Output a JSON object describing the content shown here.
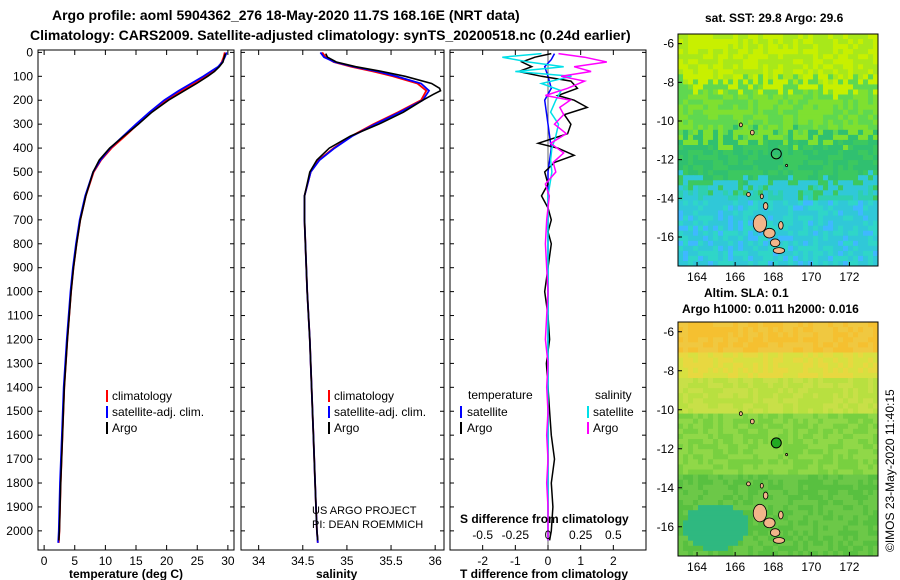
{
  "header": {
    "line1": "Argo profile: aoml 5904362_276 18-May-2020 11.7S 168.16E (NRT data)",
    "line2": "Climatology: CARS2009. Satellite-adjusted climatology: synTS_20200518.nc (0.24d earlier)"
  },
  "colors": {
    "climatology": "#ff0000",
    "satellite": "#0000ff",
    "argo": "#000000",
    "sat_salinity": "#00e0e8",
    "argo_salinity": "#ff00ff",
    "map_marker": "#22aa22"
  },
  "chart_data": [
    {
      "type": "line",
      "id": "temperature",
      "xlabel": "temperature (deg C)",
      "ylabel": "",
      "xlim": [
        -1,
        31
      ],
      "ylim": [
        2080,
        -10
      ],
      "xticks": [
        "0",
        "5",
        "10",
        "15",
        "20",
        "25",
        "30"
      ],
      "xtick_values": [
        0,
        5,
        10,
        15,
        20,
        25,
        30
      ],
      "yticks": [
        "0",
        "100",
        "200",
        "300",
        "400",
        "500",
        "600",
        "700",
        "800",
        "900",
        "1000",
        "1100",
        "1200",
        "1300",
        "1400",
        "1500",
        "1600",
        "1700",
        "1800",
        "1900",
        "2000"
      ],
      "ytick_values": [
        0,
        100,
        200,
        300,
        400,
        500,
        600,
        700,
        800,
        900,
        1000,
        1100,
        1200,
        1300,
        1400,
        1500,
        1600,
        1700,
        1800,
        1900,
        2000
      ],
      "legend": [
        "climatology",
        "satellite-adj. clim.",
        "Argo"
      ],
      "series": [
        {
          "name": "climatology",
          "depth": [
            0,
            20,
            40,
            60,
            80,
            100,
            130,
            160,
            200,
            250,
            300,
            350,
            400,
            450,
            500,
            600,
            700,
            800,
            900,
            1000,
            1200,
            1400,
            1600,
            1800,
            2000,
            2050
          ],
          "values": [
            29.5,
            29.3,
            29.0,
            28.5,
            27.6,
            26.4,
            24.5,
            22.5,
            20.0,
            17.5,
            15.3,
            13.2,
            11.0,
            9.3,
            8.1,
            6.8,
            5.9,
            5.3,
            4.8,
            4.4,
            3.8,
            3.3,
            3.0,
            2.7,
            2.5,
            2.4
          ]
        },
        {
          "name": "satellite-adj. clim.",
          "depth": [
            0,
            20,
            40,
            60,
            80,
            100,
            130,
            160,
            200,
            250,
            300,
            350,
            400,
            450,
            500,
            600,
            700,
            800,
            900,
            1000,
            1200,
            1400,
            1600,
            1800,
            2000,
            2050
          ],
          "values": [
            29.8,
            29.5,
            29.1,
            28.4,
            27.2,
            26.0,
            24.0,
            22.0,
            19.6,
            17.2,
            15.0,
            12.9,
            10.8,
            9.2,
            8.0,
            6.7,
            5.8,
            5.2,
            4.7,
            4.3,
            3.7,
            3.2,
            2.9,
            2.6,
            2.4,
            2.3
          ]
        },
        {
          "name": "Argo",
          "depth": [
            5,
            20,
            40,
            60,
            80,
            100,
            130,
            160,
            200,
            250,
            300,
            350,
            400,
            450,
            500,
            600,
            700,
            800,
            900,
            1000,
            1200,
            1400,
            1600,
            1800,
            2000,
            2040
          ],
          "values": [
            29.6,
            29.4,
            29.2,
            28.6,
            27.8,
            26.7,
            24.9,
            22.9,
            20.3,
            17.6,
            15.4,
            13.0,
            10.7,
            9.0,
            8.0,
            6.8,
            5.9,
            5.3,
            4.8,
            4.4,
            3.8,
            3.3,
            3.0,
            2.7,
            2.5,
            2.4
          ]
        }
      ]
    },
    {
      "type": "line",
      "id": "salinity",
      "xlabel": "salinity",
      "xlim": [
        33.8,
        36.1
      ],
      "ylim": [
        2080,
        -10
      ],
      "xticks": [
        "34",
        "34.5",
        "35",
        "35.5",
        "36"
      ],
      "xtick_values": [
        34,
        34.5,
        35,
        35.5,
        36
      ],
      "legend": [
        "climatology",
        "satellite-adj. clim.",
        "Argo"
      ],
      "credit": [
        "US ARGO PROJECT",
        "PI: DEAN ROEMMICH"
      ],
      "series": [
        {
          "name": "climatology",
          "depth": [
            0,
            20,
            40,
            60,
            80,
            100,
            130,
            160,
            200,
            250,
            300,
            350,
            400,
            450,
            500,
            600,
            700,
            800,
            900,
            1000,
            1200,
            1400,
            1600,
            1800,
            2000,
            2050
          ],
          "values": [
            34.72,
            34.76,
            34.85,
            35.05,
            35.3,
            35.52,
            35.8,
            35.9,
            35.84,
            35.58,
            35.3,
            35.05,
            34.85,
            34.68,
            34.59,
            34.52,
            34.52,
            34.53,
            34.54,
            34.55,
            34.58,
            34.6,
            34.62,
            34.64,
            34.66,
            34.67
          ]
        },
        {
          "name": "satellite-adj. clim.",
          "depth": [
            0,
            20,
            40,
            60,
            80,
            100,
            130,
            160,
            200,
            250,
            300,
            350,
            400,
            450,
            500,
            600,
            700,
            800,
            900,
            1000,
            1200,
            1400,
            1600,
            1800,
            2000,
            2050
          ],
          "values": [
            34.7,
            34.74,
            34.86,
            35.08,
            35.35,
            35.56,
            35.84,
            35.93,
            35.86,
            35.6,
            35.32,
            35.06,
            34.86,
            34.69,
            34.59,
            34.52,
            34.52,
            34.53,
            34.54,
            34.55,
            34.58,
            34.6,
            34.62,
            34.64,
            34.66,
            34.67
          ]
        },
        {
          "name": "Argo",
          "depth": [
            5,
            20,
            40,
            60,
            80,
            100,
            130,
            150,
            160,
            175,
            200,
            250,
            300,
            350,
            400,
            450,
            500,
            600,
            700,
            800,
            900,
            1000,
            1200,
            1400,
            1600,
            1800,
            2000,
            2040
          ],
          "values": [
            34.76,
            34.78,
            34.88,
            35.1,
            35.4,
            35.66,
            35.96,
            36.05,
            36.06,
            35.98,
            35.86,
            35.64,
            35.36,
            35.04,
            34.8,
            34.66,
            34.58,
            34.52,
            34.52,
            34.53,
            34.54,
            34.55,
            34.58,
            34.6,
            34.62,
            34.64,
            34.66,
            34.67
          ]
        }
      ]
    },
    {
      "type": "line",
      "id": "differences",
      "xlabel": "T difference from climatology",
      "xlabel_top": "S difference from climatology",
      "xlim": [
        -3,
        3
      ],
      "ylim": [
        2080,
        -10
      ],
      "xticks": [
        "-2",
        "-1",
        "0",
        "1",
        "2"
      ],
      "xtick_values": [
        -2,
        -1,
        0,
        1,
        2
      ],
      "top_xticks": [
        "-0.5",
        "-0.25",
        "0",
        "0.25",
        "0.5"
      ],
      "top_xtick_values": [
        -0.5,
        -0.25,
        0,
        0.25,
        0.5
      ],
      "legend_headers": [
        "temperature",
        "salinity"
      ],
      "legend_temperature": [
        "satellite",
        "Argo"
      ],
      "legend_salinity": [
        "satellite",
        "Argo"
      ],
      "series": [
        {
          "name": "temperature satellite",
          "depth": [
            5,
            30,
            60,
            100,
            150,
            200,
            300,
            400,
            500,
            700,
            1000,
            1500,
            2000,
            2040
          ],
          "values": [
            0.2,
            0.1,
            -0.1,
            0.0,
            0.1,
            -0.1,
            0.0,
            0.1,
            0.0,
            0.0,
            0.0,
            0.0,
            0.0,
            0.0
          ]
        },
        {
          "name": "temperature Argo",
          "depth": [
            5,
            20,
            40,
            60,
            80,
            100,
            120,
            150,
            180,
            200,
            230,
            260,
            300,
            340,
            380,
            400,
            430,
            460,
            500,
            550,
            600,
            650,
            700,
            750,
            800,
            900,
            1000,
            1100,
            1200,
            1300,
            1400,
            1500,
            1600,
            1700,
            1800,
            1900,
            2000,
            2040
          ],
          "values": [
            0.1,
            -0.4,
            -0.8,
            -0.5,
            -0.9,
            -0.2,
            0.7,
            0.9,
            0.3,
            0.8,
            1.2,
            0.5,
            0.7,
            0.6,
            -0.3,
            0.3,
            0.8,
            0.2,
            -0.1,
            0.0,
            -0.2,
            0.0,
            0.1,
            0.0,
            0.1,
            0.0,
            -0.1,
            0.0,
            0.05,
            -0.05,
            0.0,
            0.05,
            0.1,
            0.2,
            0.1,
            0.15,
            0.1,
            0.05
          ]
        },
        {
          "name": "salinity satellite",
          "depth": [
            5,
            20,
            40,
            60,
            80,
            100,
            130,
            160,
            200,
            250,
            300,
            350,
            400,
            450,
            500,
            600,
            700,
            800,
            1000,
            1200,
            1500,
            1800,
            2000,
            2040
          ],
          "values": [
            -0.05,
            -0.35,
            -0.15,
            0.12,
            -0.25,
            0.18,
            -0.05,
            0.1,
            0.06,
            0.02,
            0.08,
            0.06,
            0.03,
            0.02,
            0.03,
            0.0,
            0.0,
            0.0,
            0.0,
            0.0,
            0.0,
            0.0,
            0.0,
            0.0
          ]
        },
        {
          "name": "salinity Argo",
          "depth": [
            5,
            20,
            40,
            60,
            80,
            100,
            120,
            150,
            180,
            200,
            230,
            260,
            300,
            340,
            380,
            420,
            460,
            500,
            550,
            600,
            700,
            800,
            900,
            1000,
            1100,
            1200,
            1300,
            1400,
            1500,
            1600,
            1700,
            1800,
            1900,
            2000,
            2040
          ],
          "values": [
            0.08,
            0.28,
            0.45,
            0.2,
            0.33,
            0.1,
            0.28,
            0.15,
            -0.02,
            0.17,
            0.09,
            0.12,
            0.05,
            0.14,
            0.02,
            0.12,
            0.04,
            0.06,
            -0.02,
            0.01,
            -0.01,
            -0.02,
            -0.01,
            0.0,
            -0.01,
            -0.02,
            0.0,
            -0.01,
            0.0,
            -0.01,
            0.0,
            -0.01,
            0.0,
            0.0,
            0.0
          ]
        }
      ]
    },
    {
      "type": "heatmap",
      "id": "sst_map",
      "title": "sat. SST: 29.8 Argo: 29.6",
      "xlim": [
        163,
        173.5
      ],
      "ylim": [
        -17.5,
        -5.5
      ],
      "xticks": [
        "164",
        "166",
        "168",
        "170",
        "172"
      ],
      "xtick_values": [
        164,
        166,
        168,
        170,
        172
      ],
      "yticks": [
        "-6",
        "-8",
        "-10",
        "-12",
        "-14",
        "-16"
      ],
      "ytick_values": [
        -6,
        -8,
        -10,
        -12,
        -14,
        -16
      ],
      "marker": {
        "lon": 168.16,
        "lat": -11.7
      }
    },
    {
      "type": "heatmap",
      "id": "sla_map",
      "title_line1": "Altim. SLA: 0.1",
      "title_line2": "Argo h1000: 0.011 h2000: 0.016",
      "xlim": [
        163,
        173.5
      ],
      "ylim": [
        -17.5,
        -5.5
      ],
      "xticks": [
        "164",
        "166",
        "168",
        "170",
        "172"
      ],
      "xtick_values": [
        164,
        166,
        168,
        170,
        172
      ],
      "yticks": [
        "-6",
        "-8",
        "-10",
        "-12",
        "-14",
        "-16"
      ],
      "ytick_values": [
        -6,
        -8,
        -10,
        -12,
        -14,
        -16
      ],
      "marker": {
        "lon": 168.16,
        "lat": -11.7
      }
    }
  ],
  "footer": {
    "imos": "©IMOS 23-May-2020 11:40:15"
  }
}
